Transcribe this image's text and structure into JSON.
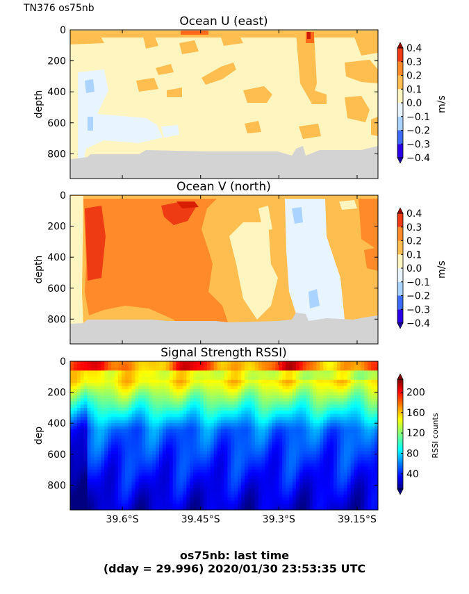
{
  "header": {
    "label": "TN376 os75nb"
  },
  "colors": {
    "land": "#d3d3d3",
    "background": "#ffffff"
  },
  "chart_data": [
    {
      "type": "heatmap",
      "title": "Ocean U (east)",
      "ylabel": "depth",
      "ylim": [
        960,
        0
      ],
      "yticks": [
        "0",
        "200",
        "400",
        "600",
        "800"
      ],
      "yticks_values": [
        0,
        200,
        400,
        600,
        800
      ],
      "xlim_deg": [
        -39.7,
        -39.11
      ],
      "colorbar": {
        "label": "m/s",
        "range": [
          -0.4,
          0.4
        ],
        "ticks": [
          "0.4",
          "0.3",
          "0.2",
          "0.1",
          "0.0",
          "−0.1",
          "−0.2",
          "−0.3",
          "−0.4"
        ],
        "tick_values": [
          0.4,
          0.3,
          0.2,
          0.1,
          0.0,
          -0.1,
          -0.2,
          -0.3,
          -0.4
        ],
        "levels": [
          -0.4,
          -0.3,
          -0.2,
          -0.1,
          0.0,
          0.1,
          0.2,
          0.3,
          0.4
        ],
        "colormap": "jet_discrete"
      },
      "dominant_values": {
        "background": 0.05,
        "patches": 0.15
      },
      "bottom_depth": 830
    },
    {
      "type": "heatmap",
      "title": "Ocean V (north)",
      "ylabel": "depth",
      "ylim": [
        960,
        0
      ],
      "yticks": [
        "0",
        "200",
        "400",
        "600",
        "800"
      ],
      "yticks_values": [
        0,
        200,
        400,
        600,
        800
      ],
      "xlim_deg": [
        -39.7,
        -39.11
      ],
      "colorbar": {
        "label": "m/s",
        "range": [
          -0.4,
          0.4
        ],
        "ticks": [
          "0.4",
          "0.3",
          "0.2",
          "0.1",
          "0.0",
          "−0.1",
          "−0.2",
          "−0.3",
          "−0.4"
        ],
        "tick_values": [
          0.4,
          0.3,
          0.2,
          0.1,
          0.0,
          -0.1,
          -0.2,
          -0.3,
          -0.4
        ],
        "levels": [
          -0.4,
          -0.3,
          -0.2,
          -0.1,
          0.0,
          0.1,
          0.2,
          0.3,
          0.4
        ],
        "colormap": "jet_discrete"
      },
      "dominant_values": {
        "west": 0.25,
        "east": 0.15,
        "band": -0.05
      },
      "bottom_depth": 830
    },
    {
      "type": "heatmap",
      "title": "Signal Strength RSSI)",
      "ylabel": "dep",
      "ylim": [
        960,
        0
      ],
      "yticks": [
        "0",
        "200",
        "400",
        "600",
        "800"
      ],
      "yticks_values": [
        0,
        200,
        400,
        600,
        800
      ],
      "xlim_deg": [
        -39.7,
        -39.11
      ],
      "xticks": [
        "39.6°S",
        "39.45°S",
        "39.3°S",
        "39.15°S"
      ],
      "xticks_values": [
        -39.6,
        -39.45,
        -39.3,
        -39.15
      ],
      "colorbar": {
        "label": "RSSI counts",
        "range": [
          10,
          225
        ],
        "ticks": [
          "200",
          "160",
          "120",
          "80",
          "40"
        ],
        "tick_values": [
          200,
          160,
          120,
          80,
          40
        ],
        "colormap": "jet"
      },
      "profile": {
        "surface": 150,
        "mid": 60,
        "deep": 25
      }
    }
  ],
  "footer": {
    "line1": "os75nb: last time",
    "line2": "(dday = 29.996) 2020/01/30 23:53:35 UTC"
  }
}
